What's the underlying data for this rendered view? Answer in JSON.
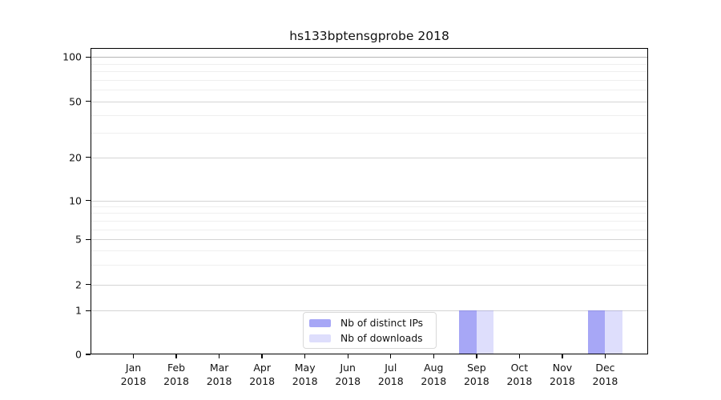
{
  "chart_data": {
    "type": "bar",
    "title": "hs133bptensgprobe 2018",
    "x_type": "category",
    "categories": [
      {
        "month": "Jan",
        "year": "2018"
      },
      {
        "month": "Feb",
        "year": "2018"
      },
      {
        "month": "Mar",
        "year": "2018"
      },
      {
        "month": "Apr",
        "year": "2018"
      },
      {
        "month": "May",
        "year": "2018"
      },
      {
        "month": "Jun",
        "year": "2018"
      },
      {
        "month": "Jul",
        "year": "2018"
      },
      {
        "month": "Aug",
        "year": "2018"
      },
      {
        "month": "Sep",
        "year": "2018"
      },
      {
        "month": "Oct",
        "year": "2018"
      },
      {
        "month": "Nov",
        "year": "2018"
      },
      {
        "month": "Dec",
        "year": "2018"
      }
    ],
    "series": [
      {
        "name": "Nb of distinct IPs",
        "color": "rgba(100,100,240,0.57)",
        "values": [
          0,
          0,
          0,
          0,
          0,
          0,
          0,
          0,
          1,
          0,
          0,
          1
        ]
      },
      {
        "name": "Nb of downloads",
        "color": "rgba(100,100,240,0.21)",
        "values": [
          0,
          0,
          0,
          0,
          0,
          0,
          0,
          0,
          1,
          0,
          0,
          1
        ]
      }
    ],
    "yticks": [
      {
        "value": 100,
        "label": "100"
      },
      {
        "value": 50,
        "label": "50"
      },
      {
        "value": 20,
        "label": "20"
      },
      {
        "value": 10,
        "label": "10"
      },
      {
        "value": 5,
        "label": "5"
      },
      {
        "value": 2,
        "label": "2"
      },
      {
        "value": 1,
        "label": "1"
      },
      {
        "value": 0,
        "label": "0"
      }
    ],
    "minor_gridlines": [
      3,
      4,
      6,
      7,
      8,
      9,
      30,
      40,
      60,
      70,
      80,
      90
    ],
    "ylim": [
      0,
      115
    ],
    "yscale": "log above 1, linear 0-1",
    "xlabel": "",
    "ylabel": "",
    "grid": "horizontal",
    "legend_position": "lower center"
  }
}
